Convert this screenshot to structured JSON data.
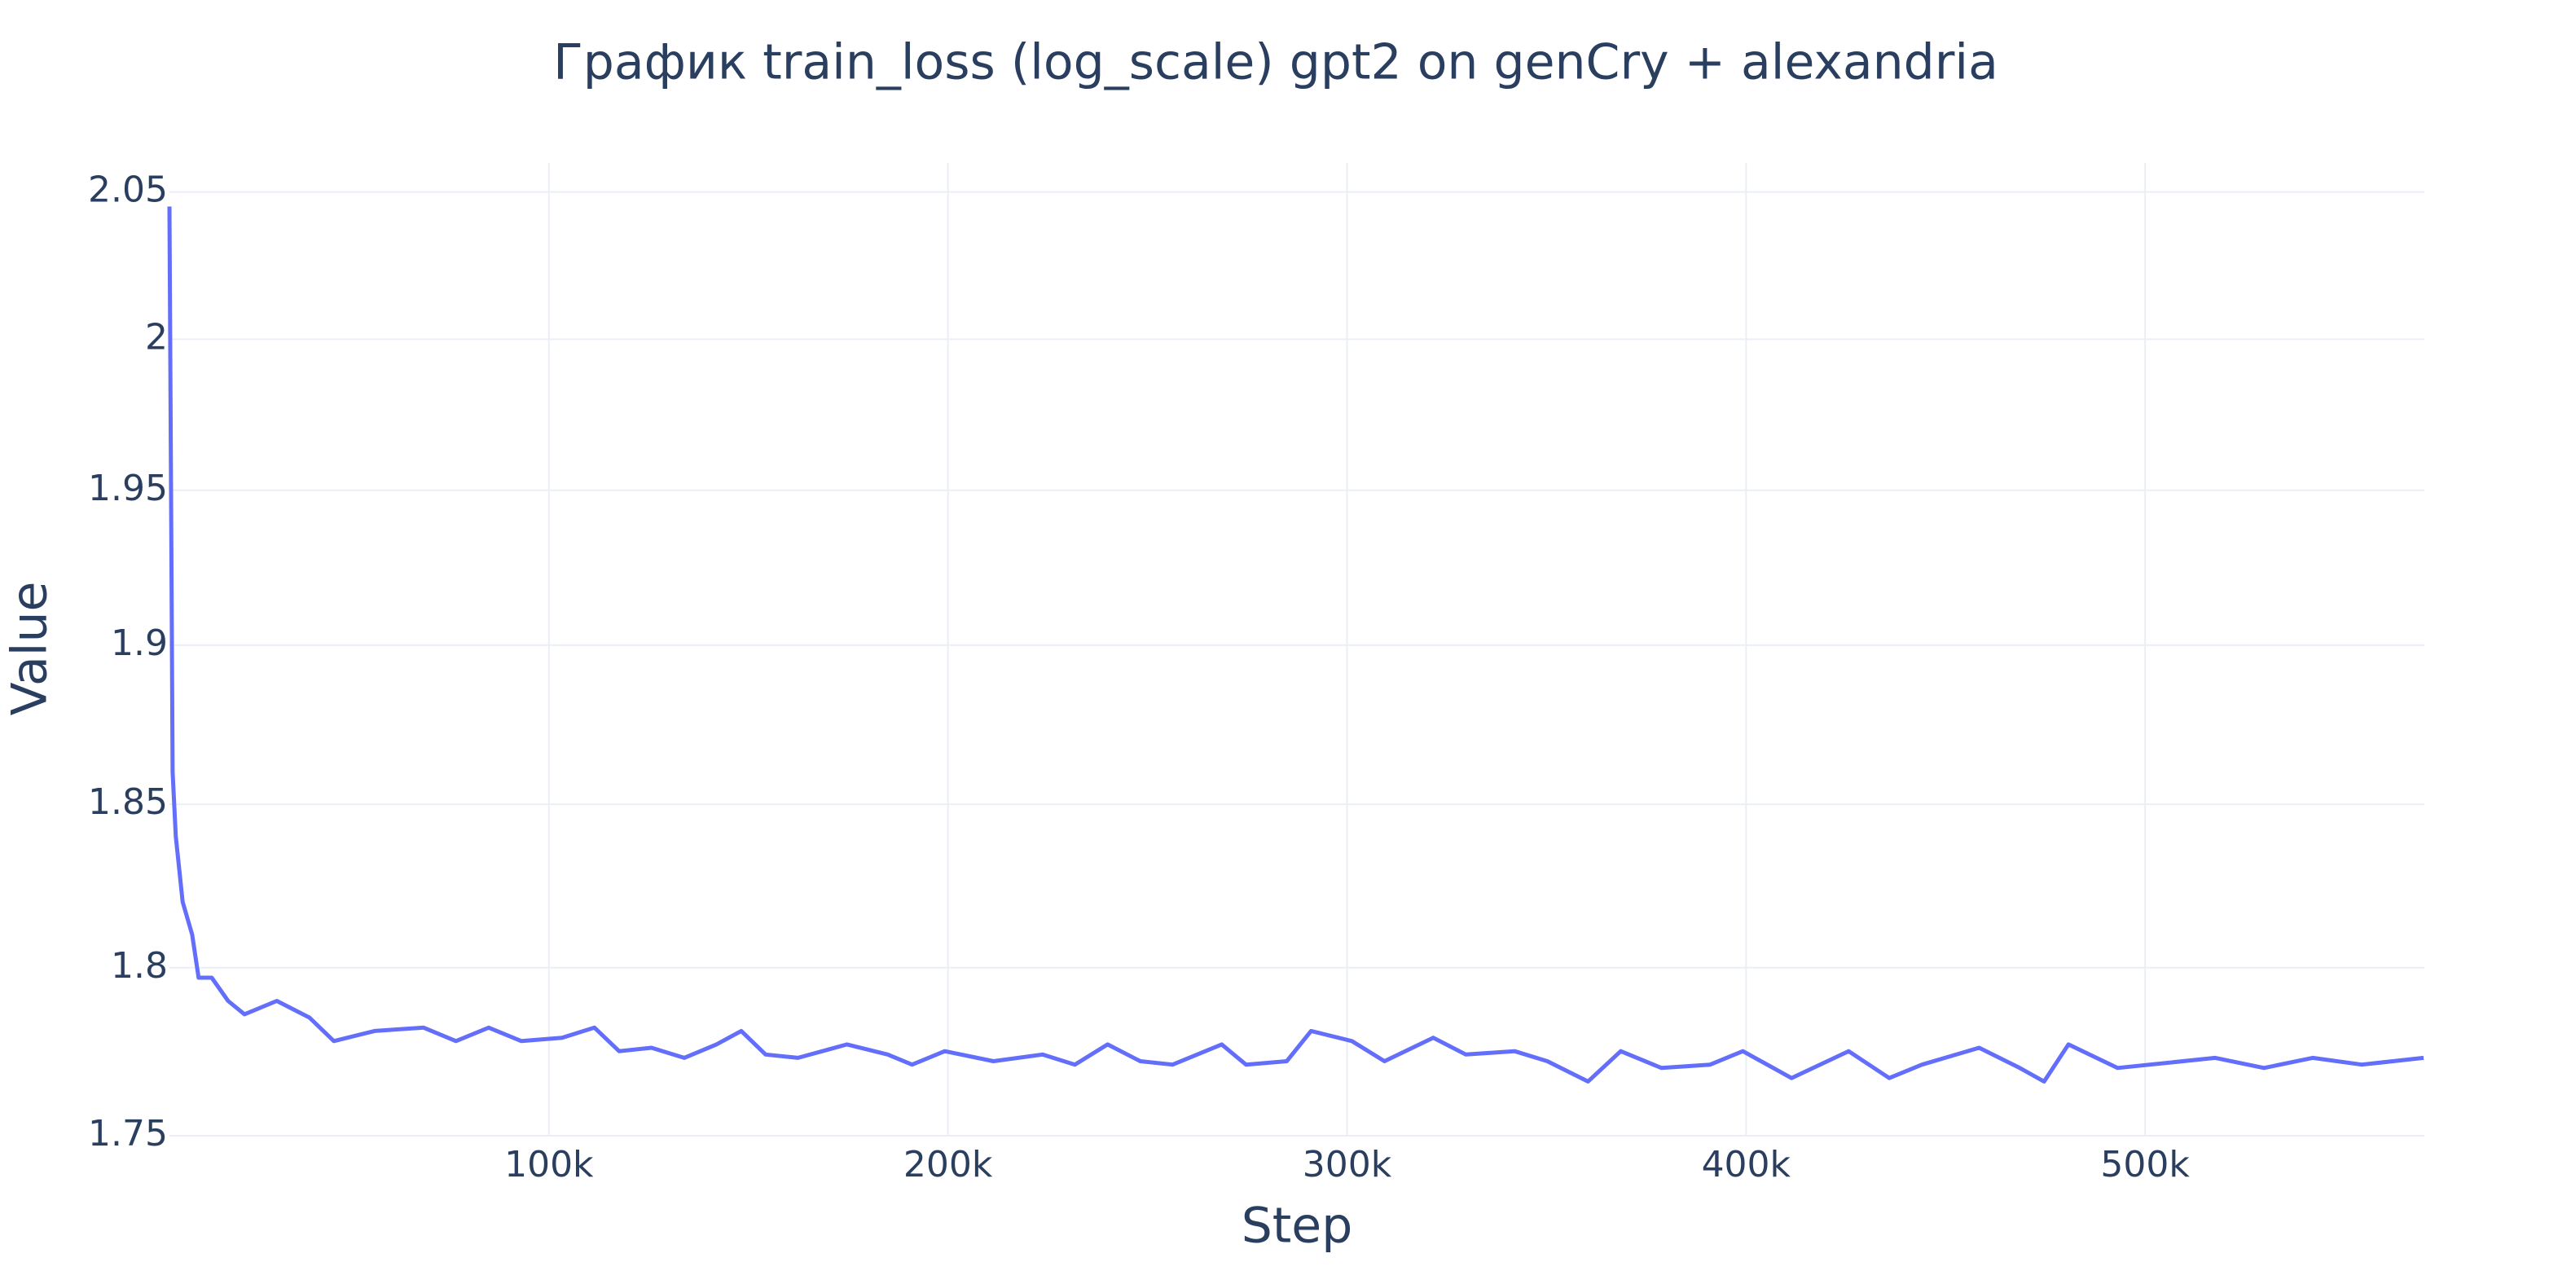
{
  "chart_data": {
    "type": "line",
    "title": "График train_loss (log_scale) gpt2 on genCry + alexandria",
    "x_label": "Step",
    "y_label": "Value",
    "y_log": true,
    "grid": true,
    "x": [
      4900,
      5700,
      6500,
      8200,
      10600,
      12200,
      15500,
      19600,
      23700,
      31800,
      40000,
      46100,
      56300,
      68600,
      76700,
      84900,
      93100,
      103300,
      111400,
      117600,
      125700,
      133900,
      142000,
      148200,
      154300,
      162400,
      174700,
      184900,
      191000,
      199200,
      211400,
      223700,
      231800,
      240000,
      248200,
      256300,
      268600,
      274700,
      284900,
      291000,
      301200,
      309400,
      321600,
      329800,
      342000,
      350200,
      360400,
      368600,
      378800,
      391000,
      399200,
      411400,
      425700,
      435900,
      444100,
      458400,
      468600,
      474700,
      480800,
      493100,
      501200,
      517600,
      529800,
      542000,
      554300,
      569800
    ],
    "series": [
      {
        "name": "train_loss",
        "color": "#636efa",
        "values": [
          2.045,
          1.86,
          1.84,
          1.82,
          1.81,
          1.797,
          1.797,
          1.79,
          1.786,
          1.79,
          1.785,
          1.778,
          1.781,
          1.782,
          1.778,
          1.782,
          1.778,
          1.779,
          1.782,
          1.775,
          1.776,
          1.773,
          1.777,
          1.781,
          1.774,
          1.773,
          1.777,
          1.774,
          1.771,
          1.775,
          1.772,
          1.774,
          1.771,
          1.777,
          1.772,
          1.771,
          1.777,
          1.771,
          1.772,
          1.781,
          1.778,
          1.772,
          1.779,
          1.774,
          1.775,
          1.772,
          1.766,
          1.775,
          1.77,
          1.771,
          1.775,
          1.767,
          1.775,
          1.767,
          1.771,
          1.776,
          1.77,
          1.766,
          1.777,
          1.77,
          1.771,
          1.773,
          1.77,
          1.773,
          1.771,
          1.773
        ]
      }
    ],
    "xlim": [
      4900,
      570000
    ],
    "ylim": [
      1.75,
      2.06
    ],
    "xticks": [
      {
        "value": 100000,
        "label": "100k"
      },
      {
        "value": 200000,
        "label": "200k"
      },
      {
        "value": 300000,
        "label": "300k"
      },
      {
        "value": 400000,
        "label": "400k"
      },
      {
        "value": 500000,
        "label": "500k"
      }
    ],
    "yticks": [
      1.75,
      1.8,
      1.85,
      1.9,
      1.95,
      2,
      2.05
    ]
  }
}
